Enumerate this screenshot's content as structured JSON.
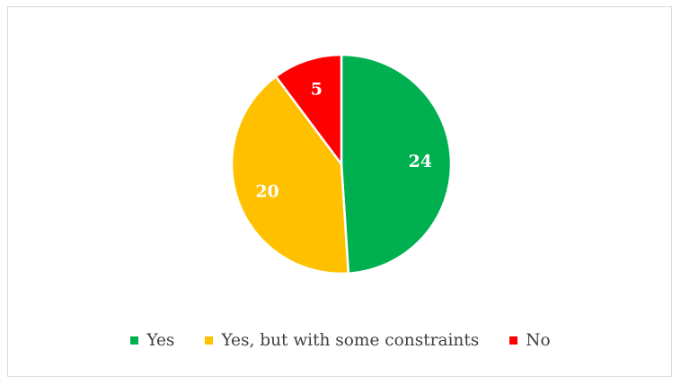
{
  "chart_data": {
    "type": "pie",
    "categories": [
      "Yes",
      "Yes, but with some constraints",
      "No"
    ],
    "values": [
      24,
      20,
      5
    ],
    "colors": [
      "#00b050",
      "#ffc000",
      "#ff0000"
    ],
    "data_labels": [
      "24",
      "20",
      "5"
    ],
    "start": "12 o'clock, clockwise",
    "legend_position": "bottom"
  }
}
